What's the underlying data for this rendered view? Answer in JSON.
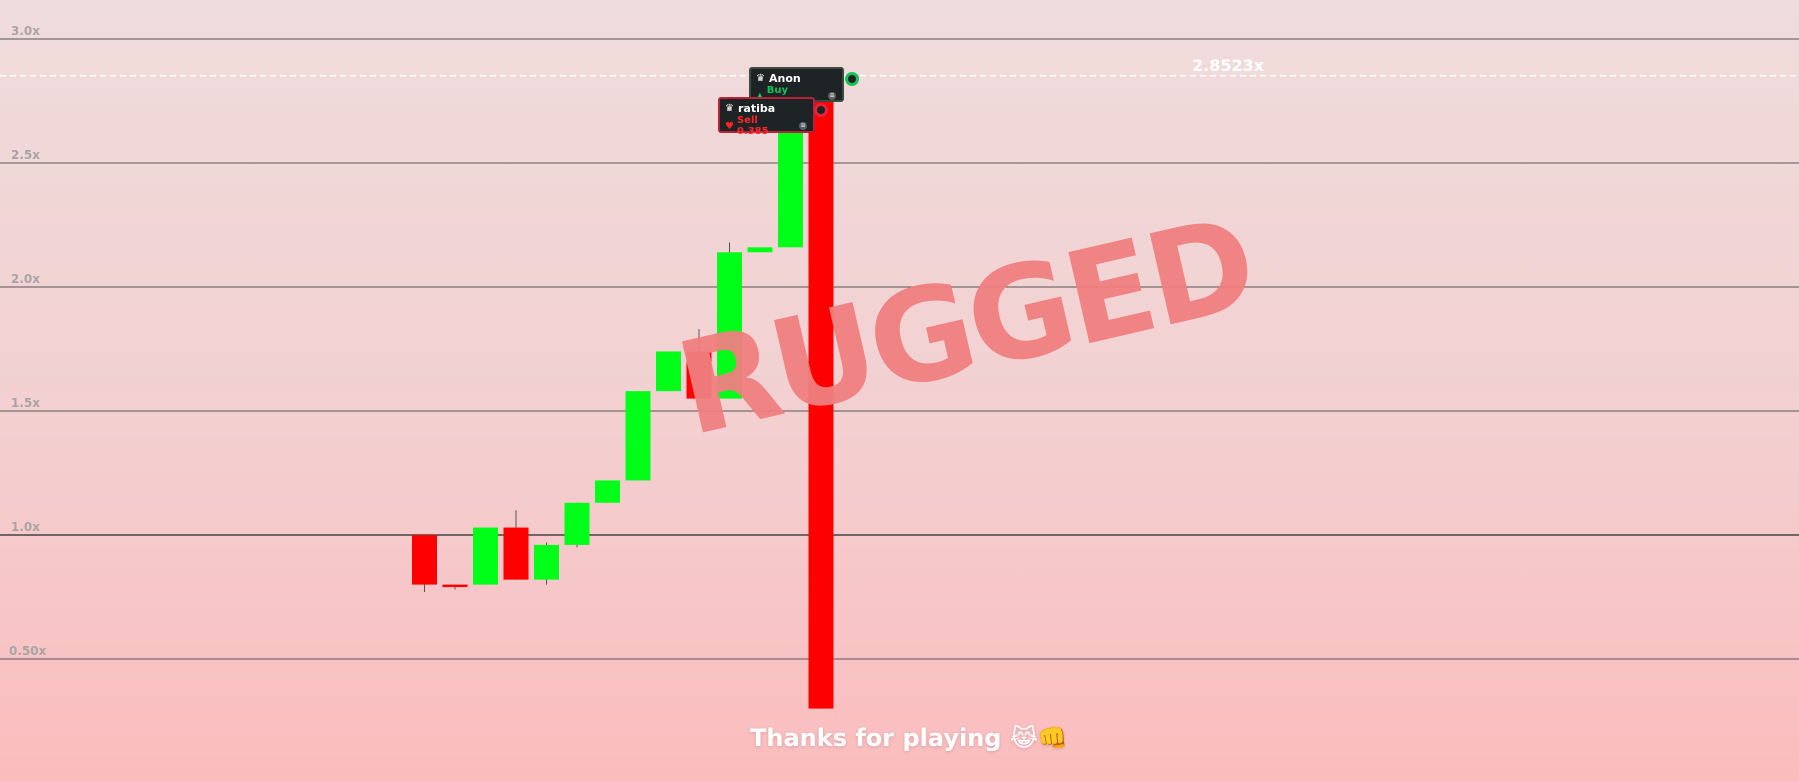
{
  "chart_data": {
    "type": "candlestick",
    "ylim": [
      0.3,
      3.15
    ],
    "grid": true,
    "y_ticks": [
      {
        "value": 3.0,
        "label": "3.0x"
      },
      {
        "value": 2.5,
        "label": "2.5x"
      },
      {
        "value": 2.0,
        "label": "2.0x"
      },
      {
        "value": 1.5,
        "label": "1.5x"
      },
      {
        "value": 1.0,
        "label": "1.0x"
      },
      {
        "value": 0.5,
        "label": "0.50x"
      }
    ],
    "candles": [
      {
        "open": 1.0,
        "close": 0.8,
        "high": 1.0,
        "low": 0.77
      },
      {
        "open": 0.8,
        "close": 0.79,
        "high": 0.8,
        "low": 0.78
      },
      {
        "open": 0.8,
        "close": 1.03,
        "high": 1.03,
        "low": 0.8
      },
      {
        "open": 1.03,
        "close": 0.82,
        "high": 1.1,
        "low": 0.82
      },
      {
        "open": 0.82,
        "close": 0.96,
        "high": 0.97,
        "low": 0.8
      },
      {
        "open": 0.96,
        "close": 1.13,
        "high": 1.13,
        "low": 0.95
      },
      {
        "open": 1.13,
        "close": 1.22,
        "high": 1.22,
        "low": 1.13
      },
      {
        "open": 1.22,
        "close": 1.58,
        "high": 1.58,
        "low": 1.22
      },
      {
        "open": 1.58,
        "close": 1.74,
        "high": 1.74,
        "low": 1.58
      },
      {
        "open": 1.74,
        "close": 1.55,
        "high": 1.83,
        "low": 1.55
      },
      {
        "open": 1.55,
        "close": 2.14,
        "high": 2.18,
        "low": 1.55
      },
      {
        "open": 2.14,
        "close": 2.16,
        "high": 2.16,
        "low": 2.14
      },
      {
        "open": 2.16,
        "close": 2.75,
        "high": 2.8,
        "low": 2.16
      },
      {
        "open": 2.85,
        "close": 0.3,
        "high": 2.85,
        "low": 0.3
      }
    ],
    "peak": {
      "value": 2.8523,
      "label": "2.8523x"
    },
    "annotations": {
      "stamp": "RUGGED",
      "footer": "Thanks for playing",
      "footer_emoji": "😹👊"
    },
    "colors": {
      "up": "#00ff18",
      "down": "#ff0000"
    }
  },
  "trades": [
    {
      "name": "Anon",
      "crown": "♛",
      "action_icon": "▲",
      "action": "Buy 0.250",
      "side": "buy",
      "badge": "≡"
    },
    {
      "name": "ratiba",
      "crown": "♛",
      "action_icon": "♥",
      "action": "Sell 0.385",
      "side": "sell",
      "badge": "≡"
    }
  ]
}
